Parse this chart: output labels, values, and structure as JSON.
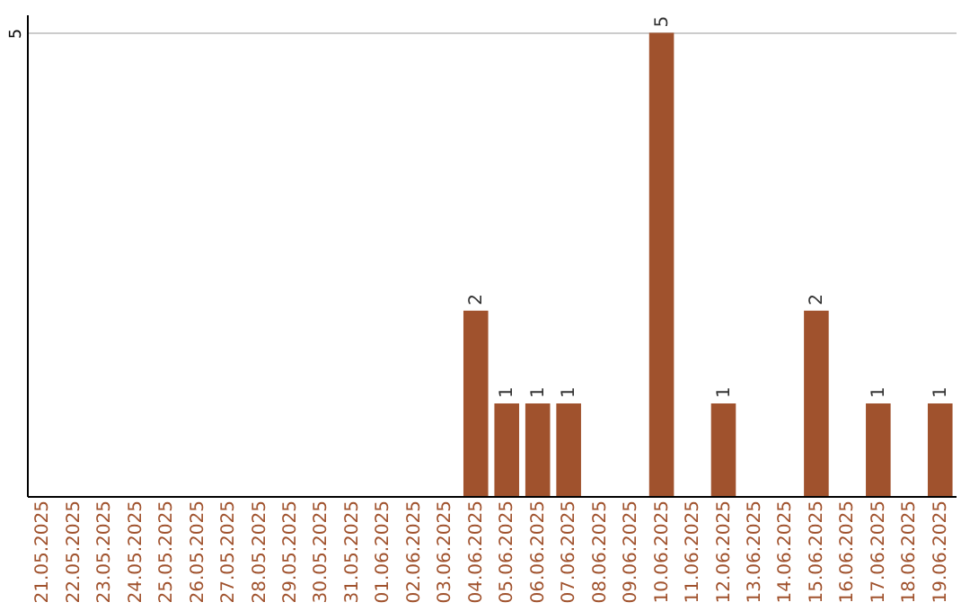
{
  "chart_data": {
    "type": "bar",
    "categories": [
      "21.05.2025",
      "22.05.2025",
      "23.05.2025",
      "24.05.2025",
      "25.05.2025",
      "26.05.2025",
      "27.05.2025",
      "28.05.2025",
      "29.05.2025",
      "30.05.2025",
      "31.05.2025",
      "01.06.2025",
      "02.06.2025",
      "03.06.2025",
      "04.06.2025",
      "05.06.2025",
      "06.06.2025",
      "07.06.2025",
      "08.06.2025",
      "09.06.2025",
      "10.06.2025",
      "11.06.2025",
      "12.06.2025",
      "13.06.2025",
      "14.06.2025",
      "15.06.2025",
      "16.06.2025",
      "17.06.2025",
      "18.06.2025",
      "19.06.2025"
    ],
    "values": [
      null,
      null,
      null,
      null,
      null,
      null,
      null,
      null,
      null,
      null,
      null,
      null,
      null,
      null,
      2,
      1,
      1,
      1,
      null,
      null,
      5,
      null,
      1,
      null,
      null,
      2,
      null,
      1,
      null,
      1
    ],
    "color": "#a0522d",
    "ylim": [
      0,
      5.2
    ],
    "yticks": [
      5
    ],
    "grid": "y",
    "data_labels": true
  }
}
